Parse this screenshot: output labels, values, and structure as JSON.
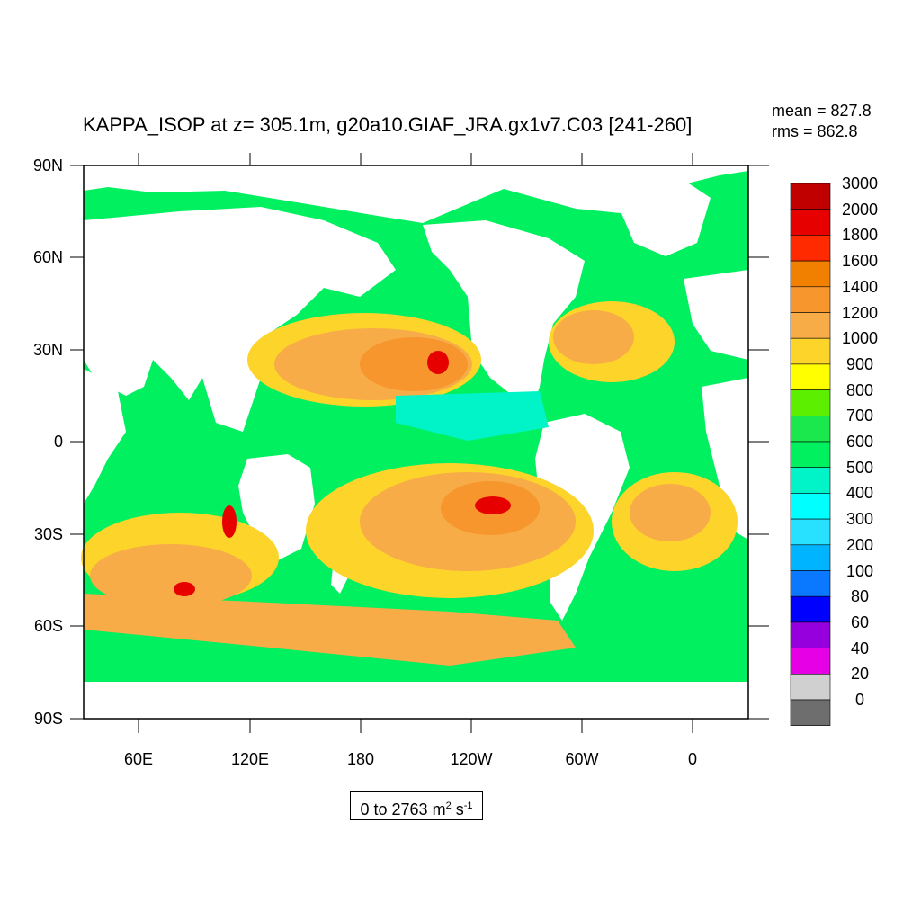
{
  "title": "KAPPA_ISOP at z= 305.1m, g20a10.GIAF_JRA.gx1v7.C03 [241-260]",
  "stats": {
    "mean": "mean = 827.8",
    "rms": "rms = 862.8"
  },
  "lat_labels": [
    "90N",
    "60N",
    "30N",
    "0",
    "30S",
    "60S",
    "90S"
  ],
  "lon_labels": [
    "60E",
    "120E",
    "180",
    "120W",
    "60W",
    "0"
  ],
  "range": {
    "text": "0 to 2763 m",
    "unit_exp1": "2",
    "unit_mid": " s",
    "unit_exp2": "-1"
  },
  "colorbar": {
    "levels": [
      "3000",
      "2000",
      "1800",
      "1600",
      "1400",
      "1200",
      "1000",
      "900",
      "800",
      "700",
      "600",
      "500",
      "400",
      "300",
      "200",
      "100",
      "80",
      "60",
      "40",
      "20",
      "0"
    ],
    "colors": [
      "#c00000",
      "#e60000",
      "#ff2a00",
      "#f28000",
      "#f6962c",
      "#f8ac48",
      "#fcd42a",
      "#ffff00",
      "#5cf000",
      "#1ae84c",
      "#00f060",
      "#00f4c8",
      "#00ffff",
      "#28e0ff",
      "#00b4ff",
      "#0a78ff",
      "#0000ff",
      "#9600dc",
      "#e600e6",
      "#d0d0d0",
      "#6e6e6e"
    ]
  }
}
